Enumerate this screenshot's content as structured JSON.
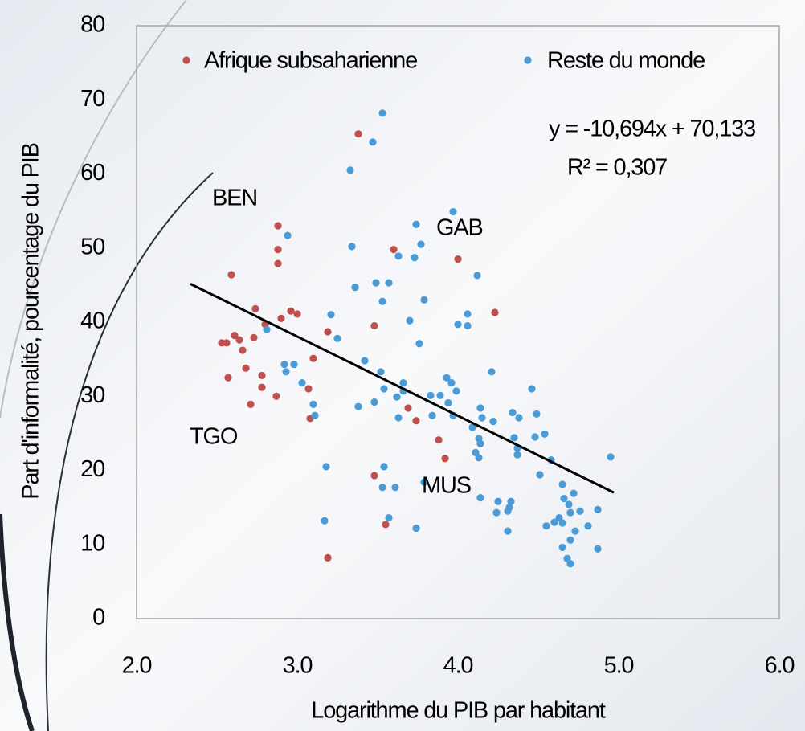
{
  "chart_data": {
    "type": "scatter",
    "xlabel": "Logarithme du PIB par habitant",
    "ylabel": "Part d'informalité, pourcentage du PIB",
    "xlim": [
      2,
      6
    ],
    "ylim": [
      0,
      80
    ],
    "xticks": [
      {
        "value": 2,
        "label": "2.0"
      },
      {
        "value": 3,
        "label": "3.0"
      },
      {
        "value": 4,
        "label": "4.0"
      },
      {
        "value": 5,
        "label": "5.0"
      },
      {
        "value": 6,
        "label": "6.0"
      }
    ],
    "yticks": [
      0,
      10,
      20,
      30,
      40,
      50,
      60,
      70,
      80
    ],
    "series": [
      {
        "name": "Afrique subsaharienne",
        "color": "#c0504d",
        "x": [
          3.38,
          2.88,
          2.88,
          2.88,
          3.6,
          4.0,
          4.23,
          2.59,
          2.74,
          2.8,
          2.9,
          2.96,
          3.0,
          3.19,
          3.48,
          2.53,
          2.56,
          2.61,
          2.64,
          2.66,
          2.73,
          3.1,
          2.68,
          2.57,
          2.78,
          2.78,
          3.07,
          2.71,
          2.87,
          3.08,
          3.74,
          3.69,
          3.88,
          3.92,
          3.48,
          3.55,
          3.19
        ],
        "values": [
          65.4,
          53.0,
          49.8,
          47.9,
          49.8,
          48.5,
          41.3,
          46.4,
          41.8,
          39.7,
          40.5,
          41.5,
          41.1,
          38.7,
          39.5,
          37.2,
          37.2,
          38.2,
          37.6,
          36.2,
          37.9,
          35.1,
          33.8,
          32.5,
          32.8,
          31.2,
          31.0,
          28.9,
          30.0,
          27.0,
          26.7,
          28.4,
          24.1,
          21.6,
          19.3,
          12.7,
          8.2
        ]
      },
      {
        "name": "Reste du monde",
        "color": "#4a9bd6",
        "x": [
          3.53,
          3.47,
          3.33,
          3.97,
          3.74,
          2.94,
          3.34,
          3.77,
          3.63,
          3.73,
          4.12,
          3.36,
          3.49,
          3.57,
          3.53,
          3.79,
          3.21,
          4.06,
          3.7,
          4.0,
          4.06,
          2.81,
          3.25,
          3.76,
          3.42,
          2.92,
          2.98,
          2.93,
          3.52,
          4.21,
          3.93,
          3.96,
          3.66,
          3.03,
          4.46,
          3.54,
          3.66,
          3.99,
          3.83,
          3.89,
          3.62,
          3.48,
          3.94,
          3.1,
          3.38,
          4.14,
          4.49,
          4.34,
          3.11,
          3.84,
          3.97,
          4.15,
          4.38,
          3.63,
          4.22,
          4.09,
          4.54,
          4.48,
          4.35,
          4.13,
          4.14,
          4.37,
          4.37,
          4.11,
          4.13,
          4.58,
          4.95,
          3.18,
          3.54,
          4.51,
          3.79,
          3.53,
          3.61,
          4.65,
          4.72,
          4.14,
          4.25,
          4.33,
          4.66,
          4.69,
          4.32,
          4.31,
          4.24,
          4.76,
          4.7,
          4.87,
          3.17,
          3.57,
          4.63,
          4.6,
          4.55,
          4.65,
          3.74,
          4.31,
          4.73,
          4.81,
          4.7,
          4.65,
          4.87,
          4.68,
          4.7
        ],
        "values": [
          68.2,
          64.3,
          60.5,
          54.9,
          53.2,
          51.7,
          50.2,
          50.5,
          48.9,
          48.7,
          46.3,
          44.7,
          45.3,
          45.3,
          42.8,
          43.0,
          41.0,
          41.1,
          40.2,
          39.7,
          39.5,
          39.0,
          37.8,
          37.1,
          34.8,
          34.3,
          34.3,
          33.3,
          33.3,
          33.3,
          32.5,
          31.8,
          31.8,
          31.8,
          31.0,
          31.0,
          30.7,
          30.7,
          30.1,
          30.1,
          29.9,
          29.2,
          29.1,
          28.9,
          28.6,
          28.4,
          27.6,
          27.8,
          27.4,
          27.4,
          27.4,
          27.1,
          27.1,
          27.1,
          26.6,
          25.8,
          24.9,
          24.5,
          24.4,
          24.3,
          23.6,
          23.0,
          22.1,
          22.4,
          21.7,
          21.4,
          21.8,
          20.5,
          20.5,
          19.4,
          18.4,
          17.7,
          17.7,
          18.1,
          16.9,
          16.3,
          15.8,
          15.8,
          16.2,
          15.4,
          15.0,
          14.5,
          14.3,
          14.5,
          14.3,
          14.7,
          13.2,
          13.6,
          13.6,
          13.0,
          12.5,
          12.9,
          12.2,
          11.8,
          11.8,
          12.5,
          10.6,
          9.6,
          9.4,
          8.1,
          7.4
        ]
      }
    ],
    "trendline": {
      "x": [
        2.335,
        4.97
      ],
      "values": [
        45.16,
        17.0
      ],
      "color": "#000000"
    },
    "equation": "y = -10,694x + 70,133",
    "r_squared": "R² = 0,307",
    "annotations": [
      "BEN",
      "GAB",
      "TGO",
      "MUS"
    ],
    "legend": "top"
  }
}
